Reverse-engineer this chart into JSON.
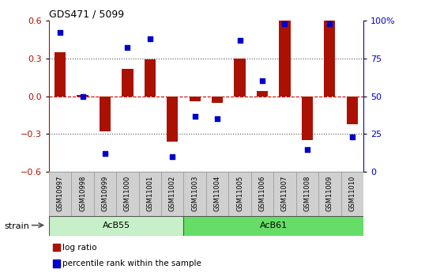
{
  "title": "GDS471 / 5099",
  "samples": [
    "GSM10997",
    "GSM10998",
    "GSM10999",
    "GSM11000",
    "GSM11001",
    "GSM11002",
    "GSM11003",
    "GSM11004",
    "GSM11005",
    "GSM11006",
    "GSM11007",
    "GSM11008",
    "GSM11009",
    "GSM11010"
  ],
  "log_ratio": [
    0.35,
    0.01,
    -0.28,
    0.22,
    0.29,
    -0.36,
    -0.04,
    -0.05,
    0.3,
    0.04,
    0.6,
    -0.35,
    0.6,
    -0.22
  ],
  "percentile_rank": [
    92,
    50,
    12,
    82,
    88,
    10,
    37,
    35,
    87,
    60,
    98,
    15,
    98,
    23
  ],
  "strain_groups": [
    {
      "label": "AcB55",
      "start": 0,
      "end": 6,
      "color": "#c8f0c8"
    },
    {
      "label": "AcB61",
      "start": 6,
      "end": 14,
      "color": "#66dd66"
    }
  ],
  "ylim": [
    -0.6,
    0.6
  ],
  "yticks": [
    -0.6,
    -0.3,
    0.0,
    0.3,
    0.6
  ],
  "y2ticks": [
    0,
    25,
    50,
    75,
    100
  ],
  "y2ticklabels": [
    "0",
    "25",
    "50",
    "75",
    "100%"
  ],
  "bar_color": "#aa1100",
  "dot_color": "#0000cc",
  "hline_color": "#cc0000",
  "dotline_color": "#555555",
  "legend_items": [
    "log ratio",
    "percentile rank within the sample"
  ],
  "strain_label": "strain"
}
